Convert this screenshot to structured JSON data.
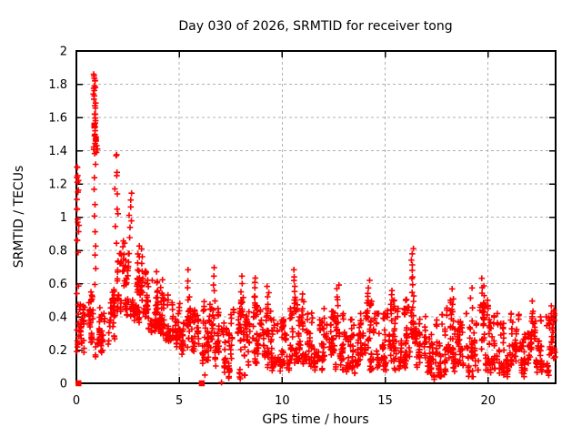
{
  "chart_data": {
    "type": "scatter",
    "title": "Day 030 of 2026, SRMTID for receiver tong",
    "xlabel": "GPS time / hours",
    "ylabel": "SRMTID / TECUs",
    "xlim": [
      0,
      23.28
    ],
    "ylim": [
      0,
      2
    ],
    "xticks": [
      "0",
      "5",
      "10",
      "15",
      "20"
    ],
    "yticks": [
      "0",
      "0.2",
      "0.4",
      "0.6",
      "0.8",
      "1",
      "1.2",
      "1.4",
      "1.6",
      "1.8",
      "2"
    ],
    "grid": true,
    "legend": null,
    "marker_color": "#ff0000",
    "grid_color": "#b0b0b0",
    "border_color": "#000000",
    "seed": 20260130,
    "series": [
      {
        "name": "srmtid-plus-markers",
        "marker": "plus",
        "color": "#ff0000",
        "dense_bins": [
          [
            0.0,
            0.5,
            36,
            0.17,
            0.48
          ],
          [
            0.5,
            1.0,
            40,
            0.2,
            0.55
          ],
          [
            1.0,
            1.5,
            34,
            0.2,
            0.55
          ],
          [
            1.5,
            2.0,
            38,
            0.25,
            0.65
          ],
          [
            2.0,
            2.5,
            48,
            0.45,
            0.78
          ],
          [
            2.5,
            3.0,
            48,
            0.42,
            0.78
          ],
          [
            3.0,
            3.5,
            44,
            0.35,
            0.72
          ],
          [
            3.5,
            4.0,
            40,
            0.3,
            0.62
          ],
          [
            4.0,
            4.5,
            40,
            0.28,
            0.56
          ],
          [
            4.5,
            5.0,
            40,
            0.25,
            0.5
          ],
          [
            5.0,
            5.5,
            40,
            0.2,
            0.48
          ],
          [
            5.5,
            6.0,
            40,
            0.17,
            0.45
          ],
          [
            6.0,
            6.5,
            40,
            0.15,
            0.5
          ],
          [
            6.5,
            7.0,
            40,
            0.13,
            0.45
          ],
          [
            7.0,
            7.5,
            38,
            0.04,
            0.4
          ],
          [
            7.5,
            8.0,
            38,
            0.03,
            0.45
          ],
          [
            8.0,
            8.5,
            42,
            0.06,
            0.5
          ],
          [
            8.5,
            9.0,
            42,
            0.15,
            0.55
          ],
          [
            9.0,
            9.5,
            40,
            0.12,
            0.45
          ],
          [
            9.5,
            10.0,
            40,
            0.08,
            0.38
          ],
          [
            10.0,
            10.5,
            42,
            0.1,
            0.45
          ],
          [
            10.5,
            11.0,
            42,
            0.15,
            0.52
          ],
          [
            11.0,
            11.5,
            40,
            0.12,
            0.45
          ],
          [
            11.5,
            12.0,
            40,
            0.1,
            0.4
          ],
          [
            12.0,
            12.5,
            42,
            0.1,
            0.45
          ],
          [
            12.5,
            13.0,
            42,
            0.1,
            0.5
          ],
          [
            13.0,
            13.5,
            40,
            0.06,
            0.4
          ],
          [
            13.5,
            14.0,
            40,
            0.07,
            0.42
          ],
          [
            14.0,
            14.5,
            42,
            0.1,
            0.5
          ],
          [
            14.5,
            15.0,
            40,
            0.1,
            0.42
          ],
          [
            15.0,
            15.5,
            42,
            0.1,
            0.5
          ],
          [
            15.5,
            16.0,
            40,
            0.1,
            0.45
          ],
          [
            16.0,
            16.5,
            44,
            0.12,
            0.55
          ],
          [
            16.5,
            17.0,
            40,
            0.1,
            0.45
          ],
          [
            17.0,
            17.5,
            40,
            0.03,
            0.38
          ],
          [
            17.5,
            18.0,
            40,
            0.05,
            0.45
          ],
          [
            18.0,
            18.5,
            42,
            0.08,
            0.5
          ],
          [
            18.5,
            19.0,
            40,
            0.08,
            0.42
          ],
          [
            19.0,
            19.5,
            40,
            0.05,
            0.38
          ],
          [
            19.5,
            20.0,
            42,
            0.1,
            0.5
          ],
          [
            20.0,
            20.5,
            40,
            0.08,
            0.42
          ],
          [
            20.5,
            21.0,
            40,
            0.05,
            0.36
          ],
          [
            21.0,
            21.5,
            40,
            0.1,
            0.42
          ],
          [
            21.5,
            22.0,
            40,
            0.05,
            0.36
          ],
          [
            22.0,
            22.5,
            40,
            0.06,
            0.42
          ],
          [
            22.5,
            23.0,
            40,
            0.06,
            0.4
          ],
          [
            23.0,
            23.28,
            20,
            0.15,
            0.45
          ]
        ],
        "spikes": [
          [
            0.05,
            0.8,
            1.3,
            9
          ],
          [
            0.05,
            0.2,
            0.6,
            8
          ],
          [
            0.88,
            1.38,
            1.86,
            20
          ],
          [
            0.89,
            0.6,
            1.32,
            10
          ],
          [
            1.93,
            0.85,
            1.38,
            6
          ],
          [
            2.62,
            0.88,
            1.14,
            7
          ],
          [
            2.3,
            0.6,
            0.87,
            10
          ],
          [
            3.0,
            0.55,
            0.83,
            8
          ],
          [
            3.2,
            0.5,
            0.8,
            8
          ],
          [
            3.9,
            0.35,
            0.66,
            7
          ],
          [
            4.15,
            0.4,
            0.62,
            6
          ],
          [
            5.45,
            0.35,
            0.67,
            8
          ],
          [
            6.68,
            0.3,
            0.7,
            9
          ],
          [
            8.05,
            0.4,
            0.63,
            7
          ],
          [
            8.7,
            0.4,
            0.62,
            9
          ],
          [
            9.3,
            0.4,
            0.58,
            6
          ],
          [
            10.62,
            0.42,
            0.67,
            9
          ],
          [
            11.0,
            0.38,
            0.55,
            6
          ],
          [
            12.7,
            0.38,
            0.6,
            7
          ],
          [
            14.2,
            0.4,
            0.61,
            8
          ],
          [
            15.35,
            0.38,
            0.56,
            6
          ],
          [
            16.33,
            0.38,
            0.82,
            14
          ],
          [
            18.3,
            0.38,
            0.56,
            5
          ],
          [
            19.2,
            0.38,
            0.56,
            4
          ],
          [
            19.75,
            0.4,
            0.63,
            9
          ],
          [
            22.15,
            0.28,
            0.48,
            6
          ],
          [
            23.1,
            0.22,
            0.46,
            8
          ]
        ],
        "points": [
          [
            0.05,
            1.3
          ],
          [
            0.06,
            1.25
          ],
          [
            0.05,
            1.21
          ],
          [
            0.07,
            1.15
          ],
          [
            0.04,
            1.05
          ],
          [
            0.06,
            0.97
          ],
          [
            0.05,
            0.86
          ],
          [
            0.1,
            1.22
          ],
          [
            0.12,
            0.95
          ],
          [
            0.86,
            1.85
          ],
          [
            0.9,
            1.82
          ],
          [
            0.88,
            1.79
          ],
          [
            0.92,
            1.78
          ],
          [
            0.87,
            1.73
          ],
          [
            0.9,
            1.67
          ],
          [
            0.89,
            1.62
          ],
          [
            0.93,
            1.58
          ],
          [
            0.91,
            1.52
          ],
          [
            0.88,
            1.49
          ],
          [
            0.95,
            1.46
          ],
          [
            0.99,
            1.43
          ],
          [
            1.02,
            1.41
          ],
          [
            0.97,
            1.39
          ],
          [
            1.93,
            1.37
          ],
          [
            1.96,
            1.25
          ],
          [
            1.99,
            1.14
          ],
          [
            2.02,
            1.02
          ],
          [
            7.05,
            0.005
          ],
          [
            6.24,
            0.05
          ],
          [
            23.2,
            0.44
          ],
          [
            23.15,
            0.38
          ]
        ]
      },
      {
        "name": "srmtid-square-markers",
        "marker": "square",
        "color": "#ff0000",
        "points": [
          [
            0.1,
            0.0
          ],
          [
            6.09,
            0.0
          ],
          [
            0.87,
            1.55
          ],
          [
            0.95,
            1.47
          ]
        ]
      }
    ]
  }
}
